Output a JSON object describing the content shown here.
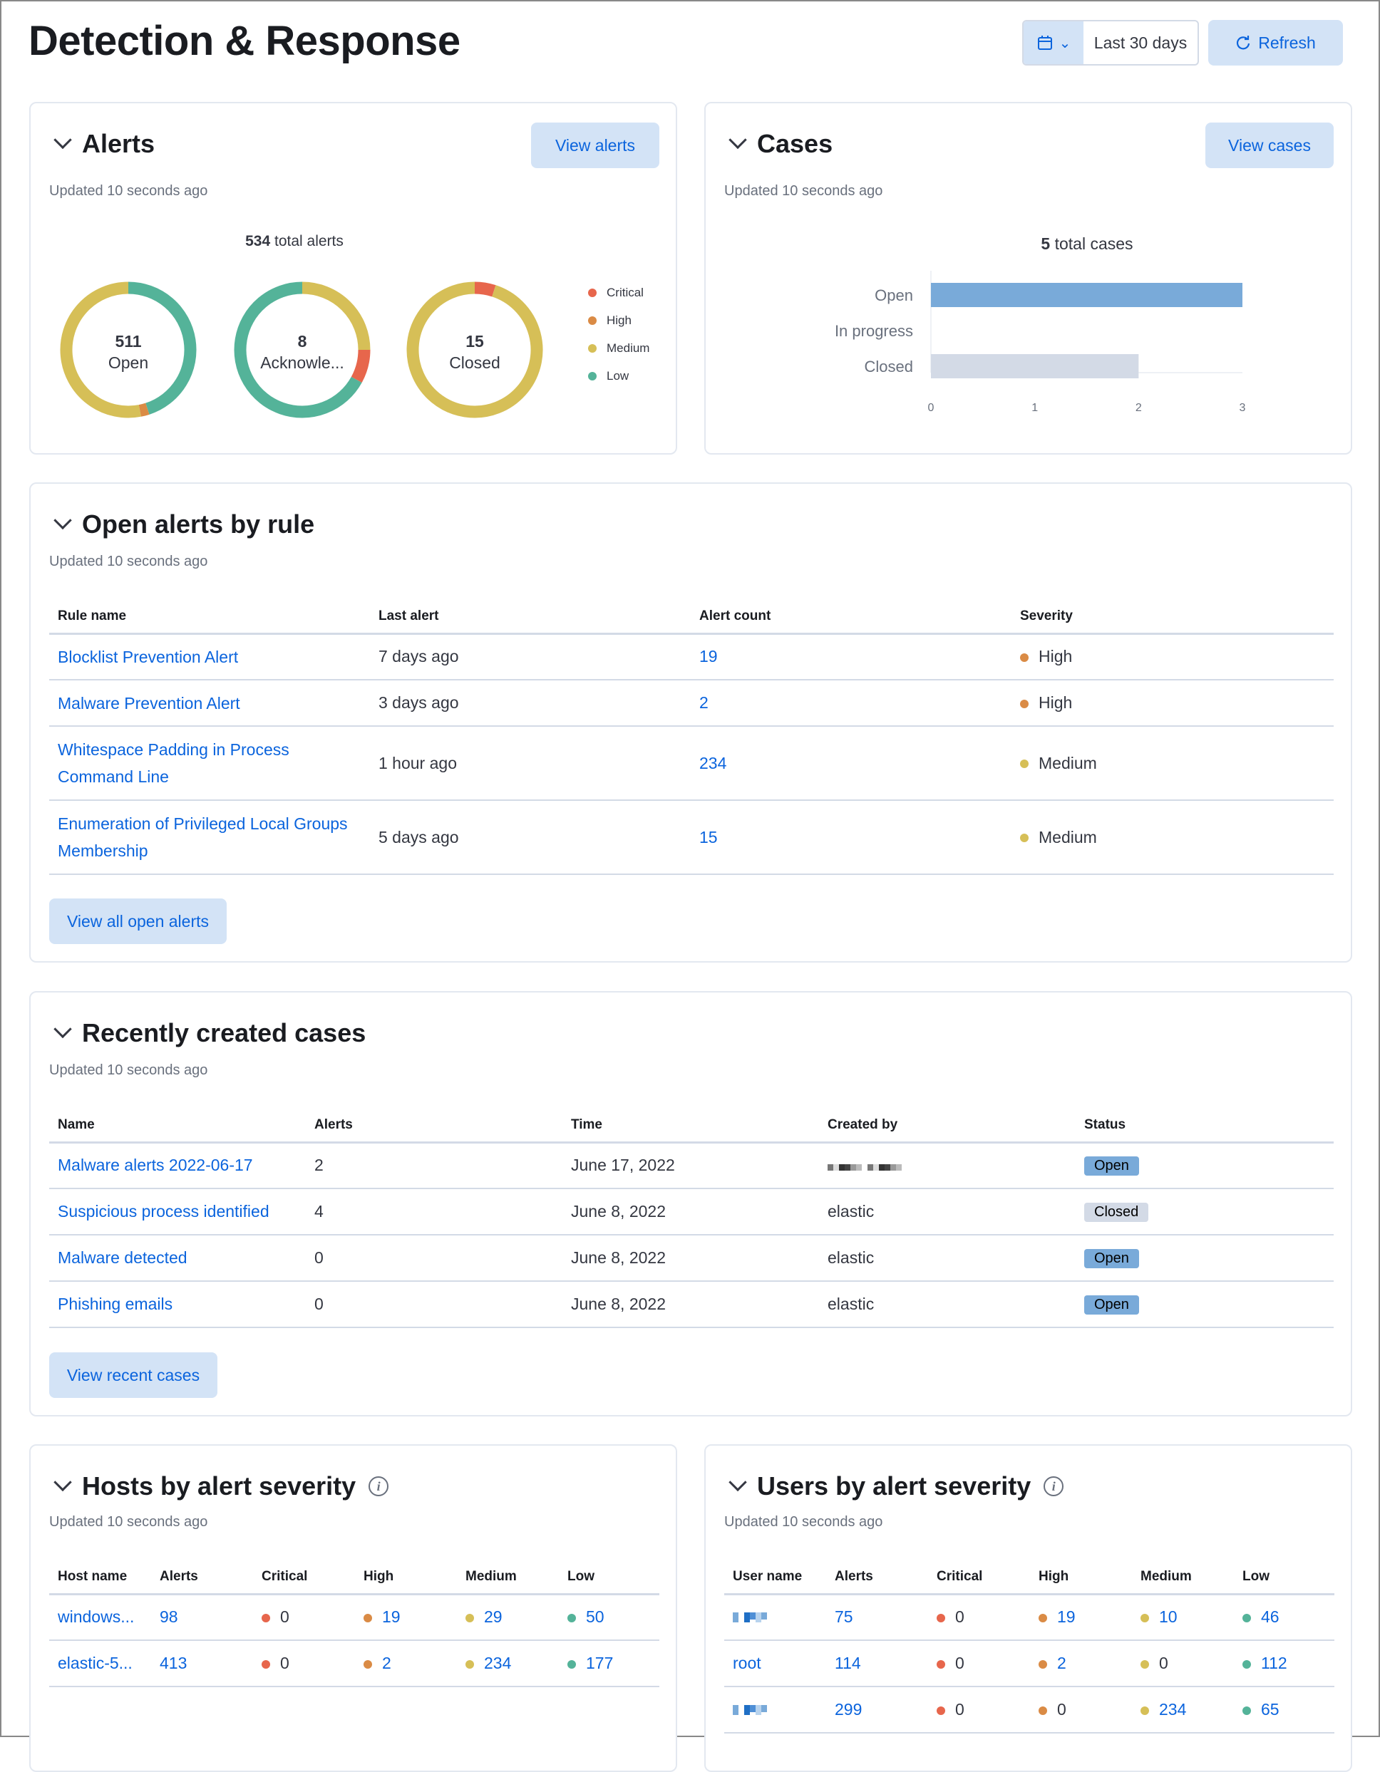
{
  "header": {
    "title": "Detection & Response",
    "date_range": "Last 30 days",
    "refresh_label": "Refresh",
    "calendar_icon": "calendar-icon",
    "refresh_icon": "refresh-icon"
  },
  "colors": {
    "critical": "#e7664c",
    "high": "#da8b45",
    "medium": "#d6bf57",
    "low": "#54b399",
    "link": "#0b64dd",
    "open_badge": "#79aad9",
    "closed_badge": "#d3dae6"
  },
  "alerts": {
    "title": "Alerts",
    "updated": "Updated 10 seconds ago",
    "button": "View alerts",
    "total_value": "534",
    "total_label": "total alerts",
    "legend": [
      "Critical",
      "High",
      "Medium",
      "Low"
    ]
  },
  "cases": {
    "title": "Cases",
    "updated": "Updated 10 seconds ago",
    "button": "View cases",
    "total_value": "5",
    "total_label": "total cases"
  },
  "chart_data": [
    {
      "type": "pie",
      "donut": true,
      "value": "511",
      "label": "Open",
      "slices": {
        "Low": 0.45,
        "High": 0.02,
        "Medium": 0.53
      }
    },
    {
      "type": "pie",
      "donut": true,
      "value": "8",
      "label": "Acknowle...",
      "slices": {
        "Medium": 0.25,
        "Critical": 0.08,
        "Low": 0.67
      }
    },
    {
      "type": "pie",
      "donut": true,
      "value": "15",
      "label": "Closed",
      "slices": {
        "Critical": 0.05,
        "Medium": 0.95
      }
    },
    {
      "type": "bar",
      "orientation": "horizontal",
      "categories": [
        "Open",
        "In progress",
        "Closed"
      ],
      "values": [
        3,
        0,
        2
      ],
      "xlim": [
        0,
        3
      ],
      "xticks": [
        "0",
        "1",
        "2",
        "3"
      ],
      "bar_colors": [
        "#79aad9",
        "#79aad9",
        "#d3dae6"
      ]
    }
  ],
  "open_alerts": {
    "title": "Open alerts by rule",
    "updated": "Updated 10 seconds ago",
    "button": "View all open alerts",
    "columns": [
      "Rule name",
      "Last alert",
      "Alert count",
      "Severity"
    ],
    "rows": [
      {
        "name": "Blocklist Prevention Alert",
        "last": "7 days ago",
        "count": "19",
        "severity": "High"
      },
      {
        "name": "Malware Prevention Alert",
        "last": "3 days ago",
        "count": "2",
        "severity": "High"
      },
      {
        "name": "Whitespace Padding in Process Command Line",
        "last": "1 hour ago",
        "count": "234",
        "severity": "Medium"
      },
      {
        "name": "Enumeration of Privileged Local Groups Membership",
        "last": "5 days ago",
        "count": "15",
        "severity": "Medium"
      }
    ]
  },
  "recent_cases": {
    "title": "Recently created cases",
    "updated": "Updated 10 seconds ago",
    "button": "View recent cases",
    "columns": [
      "Name",
      "Alerts",
      "Time",
      "Created by",
      "Status"
    ],
    "rows": [
      {
        "name": "Malware alerts 2022-06-17",
        "alerts": "2",
        "time": "June 17, 2022",
        "created_by": "",
        "status": "Open"
      },
      {
        "name": "Suspicious process identified",
        "alerts": "4",
        "time": "June 8, 2022",
        "created_by": "elastic",
        "status": "Closed"
      },
      {
        "name": "Malware detected",
        "alerts": "0",
        "time": "June 8, 2022",
        "created_by": "elastic",
        "status": "Open"
      },
      {
        "name": "Phishing emails",
        "alerts": "0",
        "time": "June 8, 2022",
        "created_by": "elastic",
        "status": "Open"
      }
    ]
  },
  "hosts": {
    "title": "Hosts by alert severity",
    "updated": "Updated 10 seconds ago",
    "columns": [
      "Host name",
      "Alerts",
      "Critical",
      "High",
      "Medium",
      "Low"
    ],
    "rows": [
      {
        "name": "windows...",
        "alerts": "98",
        "critical": "0",
        "high": "19",
        "medium": "29",
        "low": "50"
      },
      {
        "name": "elastic-5...",
        "alerts": "413",
        "critical": "0",
        "high": "2",
        "medium": "234",
        "low": "177"
      }
    ]
  },
  "users": {
    "title": "Users by alert severity",
    "updated": "Updated 10 seconds ago",
    "columns": [
      "User name",
      "Alerts",
      "Critical",
      "High",
      "Medium",
      "Low"
    ],
    "rows": [
      {
        "name": "",
        "alerts": "75",
        "critical": "0",
        "high": "19",
        "medium": "10",
        "low": "46"
      },
      {
        "name": "root",
        "alerts": "114",
        "critical": "0",
        "high": "2",
        "medium": "0",
        "low": "112"
      },
      {
        "name": "",
        "alerts": "299",
        "critical": "0",
        "high": "0",
        "medium": "234",
        "low": "65"
      }
    ]
  }
}
